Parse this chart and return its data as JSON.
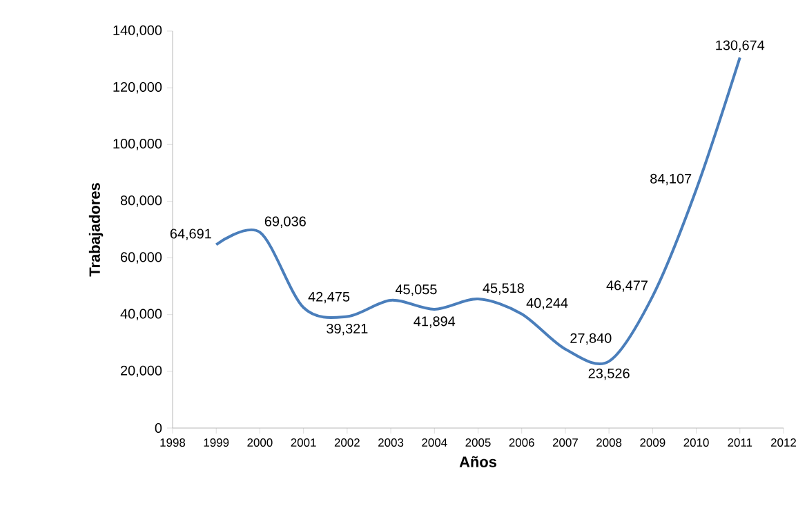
{
  "chart_data": {
    "type": "line",
    "xlabel": "Años",
    "ylabel": "Trabajadores",
    "x": [
      1999,
      2000,
      2001,
      2002,
      2003,
      2004,
      2005,
      2006,
      2007,
      2008,
      2009,
      2010,
      2011
    ],
    "values": [
      64691,
      69036,
      42475,
      39321,
      45055,
      41894,
      45518,
      40244,
      27840,
      23526,
      46477,
      84107,
      130674
    ],
    "value_labels": [
      "64,691",
      "69,036",
      "42,475",
      "39,321",
      "45,055",
      "41,894",
      "45,518",
      "40,244",
      "27,840",
      "23,526",
      "46,477",
      "84,107",
      "130,674"
    ],
    "color": "#4a7ebb",
    "marker": "none",
    "line_style": "solid",
    "grid": false,
    "xlim": [
      1998,
      2012
    ],
    "xticks": [
      1998,
      1999,
      2000,
      2001,
      2002,
      2003,
      2004,
      2005,
      2006,
      2007,
      2008,
      2009,
      2010,
      2011,
      2012
    ],
    "ylim": [
      0,
      140000
    ],
    "yticks": [
      0,
      {
        "value": 20000,
        "label": "20,000"
      },
      {
        "value": 40000,
        "label": "40,000"
      },
      {
        "value": 60000,
        "label": "60,000"
      },
      {
        "value": 80000,
        "label": "80,000"
      },
      {
        "value": 100000,
        "label": "100,000"
      },
      {
        "value": 120000,
        "label": "120,000"
      },
      {
        "value": 140000,
        "label": "140,000"
      }
    ]
  }
}
